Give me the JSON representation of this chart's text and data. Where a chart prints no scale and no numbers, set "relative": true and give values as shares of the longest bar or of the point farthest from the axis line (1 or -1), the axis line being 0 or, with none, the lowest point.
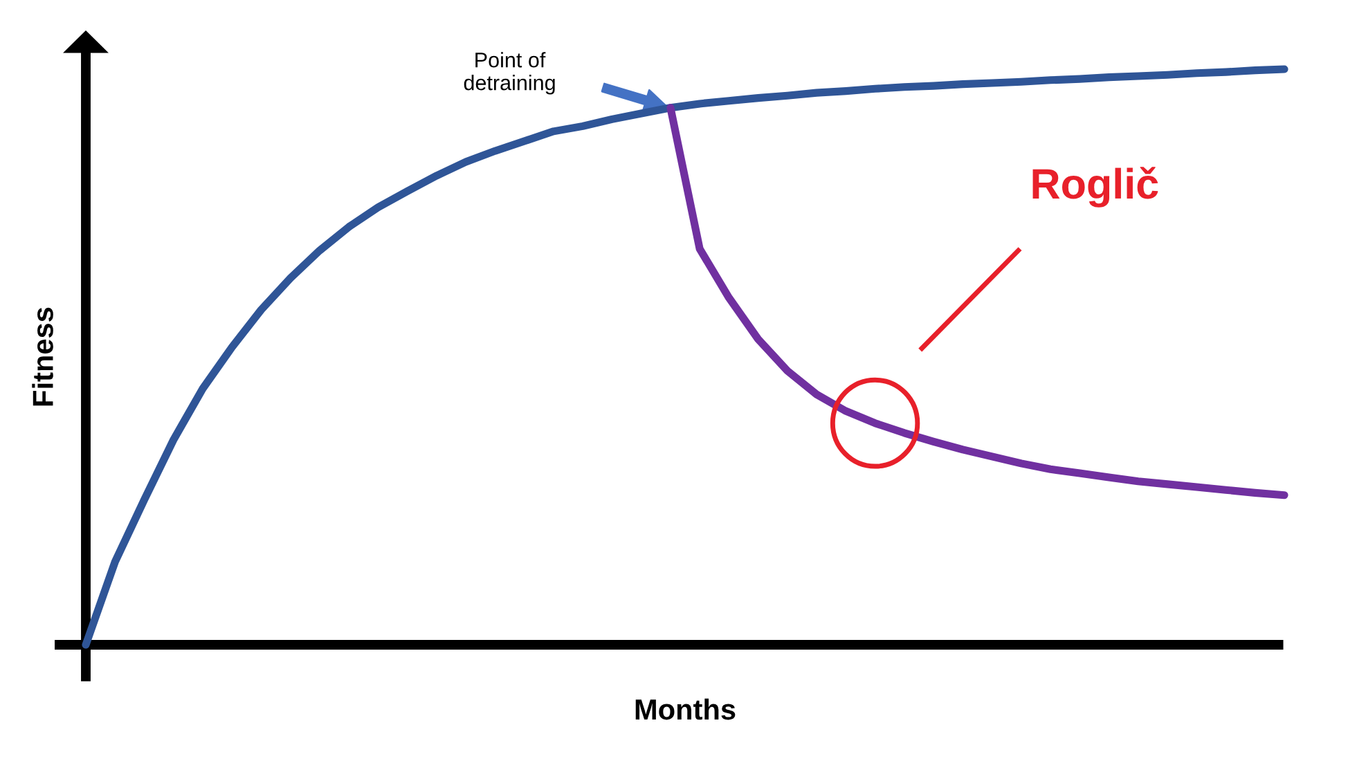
{
  "chart_data": {
    "type": "line",
    "relative": true,
    "xlabel": "Months",
    "ylabel": "Fitness",
    "categories": [
      null,
      null,
      null,
      null,
      null,
      null,
      null,
      null,
      null,
      null,
      null,
      null,
      null,
      null,
      null,
      null,
      null,
      null,
      null,
      null,
      null,
      null,
      null,
      null,
      null,
      null,
      null,
      null,
      null,
      null,
      null,
      null,
      null,
      null,
      null,
      null,
      null,
      null,
      null,
      null,
      null,
      null
    ],
    "series": [
      {
        "color": "#2f5597",
        "values": [
          0,
          0.144,
          0.252,
          0.356,
          0.445,
          0.517,
          0.582,
          0.637,
          0.685,
          0.726,
          0.76,
          0.788,
          0.815,
          0.839,
          0.858,
          0.875,
          0.892,
          0.901,
          0.913,
          0.923,
          0.933,
          0.94,
          0.945,
          0.95,
          0.954,
          0.959,
          0.962,
          0.966,
          0.969,
          0.971,
          0.974,
          0.976,
          0.978,
          0.981,
          0.983,
          0.986,
          0.988,
          0.99,
          0.993,
          0.995,
          0.998,
          1
        ]
      },
      {
        "color": "#7030a0",
        "values": [
          null,
          null,
          null,
          null,
          null,
          null,
          null,
          null,
          null,
          null,
          null,
          null,
          null,
          null,
          null,
          null,
          null,
          null,
          null,
          null,
          0.933,
          0.688,
          0.603,
          0.531,
          0.476,
          0.435,
          0.406,
          0.385,
          0.368,
          0.353,
          0.339,
          0.327,
          0.315,
          0.305,
          0.298,
          0.291,
          0.284,
          0.279,
          0.274,
          0.269,
          0.264,
          0.26
        ]
      }
    ],
    "annotations": [
      "Point of\ndetraining",
      "Roglič"
    ],
    "grid": false,
    "legend": false,
    "marker": "none",
    "line_style": "solid"
  }
}
